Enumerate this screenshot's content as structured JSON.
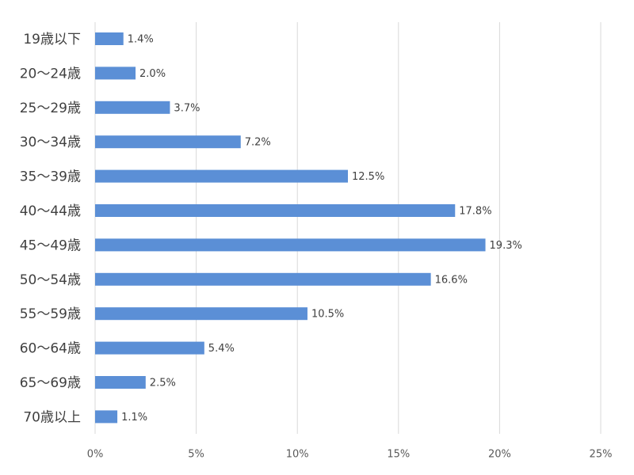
{
  "chart_data": {
    "type": "bar",
    "orientation": "horizontal",
    "categories": [
      "19歳以下",
      "20～24歳",
      "25～29歳",
      "30～34歳",
      "35～39歳",
      "40～44歳",
      "45～49歳",
      "50～54歳",
      "55～59歳",
      "60～64歳",
      "65～69歳",
      "70歳以上"
    ],
    "values": [
      1.4,
      2.0,
      3.7,
      7.2,
      12.5,
      17.8,
      19.3,
      16.6,
      10.5,
      5.4,
      2.5,
      1.1
    ],
    "data_labels": [
      "1.4%",
      "2.0%",
      "3.7%",
      "7.2%",
      "12.5%",
      "17.8%",
      "19.3%",
      "16.6%",
      "10.5%",
      "5.4%",
      "2.5%",
      "1.1%"
    ],
    "x_ticks": [
      0,
      5,
      10,
      15,
      20,
      25
    ],
    "x_tick_labels": [
      "0%",
      "5%",
      "10%",
      "15%",
      "20%",
      "25%"
    ],
    "xlim": [
      0,
      25
    ],
    "title": "",
    "xlabel": "",
    "ylabel": "",
    "grid": "vertical",
    "legend": "none",
    "colors": {
      "bar": "#5B8FD6",
      "grid": "#D9D9D9",
      "text": "#404040"
    }
  }
}
